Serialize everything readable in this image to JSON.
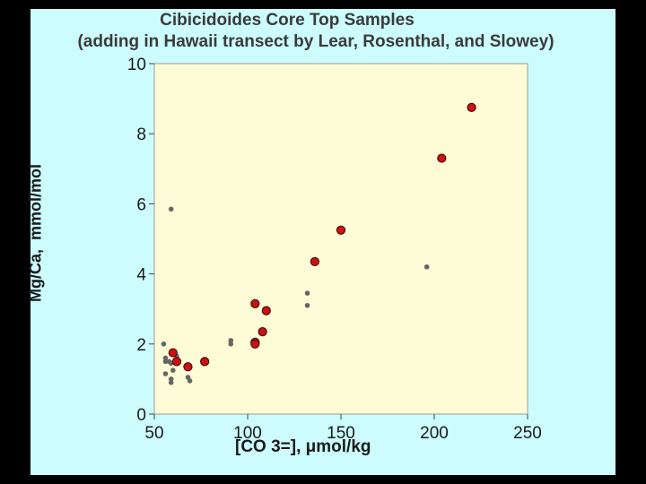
{
  "slide": {
    "background": "#ccfcfd"
  },
  "chart_data": {
    "type": "scatter",
    "title_line1": "Cibicidoides Core Top Samples",
    "title_line2": "(adding in Hawaii transect by Lear, Rosenthal, and Slowey)",
    "xlabel": "[CO 3=], μmol/kg",
    "ylabel": "Mg/Ca,  mmol/mol",
    "xlim": [
      50,
      250
    ],
    "ylim": [
      0,
      10
    ],
    "xticks": [
      50,
      100,
      150,
      200,
      250
    ],
    "yticks": [
      0,
      2,
      4,
      6,
      8,
      10
    ],
    "plot_background": "#fefcd6",
    "series": [
      {
        "name": "Core top samples",
        "color": "#666666",
        "x": [
          59,
          55,
          56,
          56,
          58,
          59,
          60,
          56,
          59,
          59,
          62,
          68,
          69,
          91,
          91,
          104,
          132,
          132,
          196
        ],
        "y": [
          5.85,
          2.0,
          1.6,
          1.5,
          1.5,
          1.45,
          1.25,
          1.15,
          1.0,
          0.9,
          1.65,
          1.05,
          0.95,
          2.1,
          2.0,
          2.1,
          3.45,
          3.1,
          4.2
        ]
      },
      {
        "name": "Hawaii transect (Lear, Rosenthal, and Slowey)",
        "color": "#cc1111",
        "x": [
          60,
          62,
          68,
          77,
          104,
          104,
          104,
          108,
          110,
          136,
          150,
          204,
          220
        ],
        "y": [
          1.75,
          1.5,
          1.35,
          1.5,
          3.15,
          2.05,
          2.0,
          2.35,
          2.95,
          4.35,
          5.25,
          7.3,
          8.75
        ]
      }
    ]
  }
}
